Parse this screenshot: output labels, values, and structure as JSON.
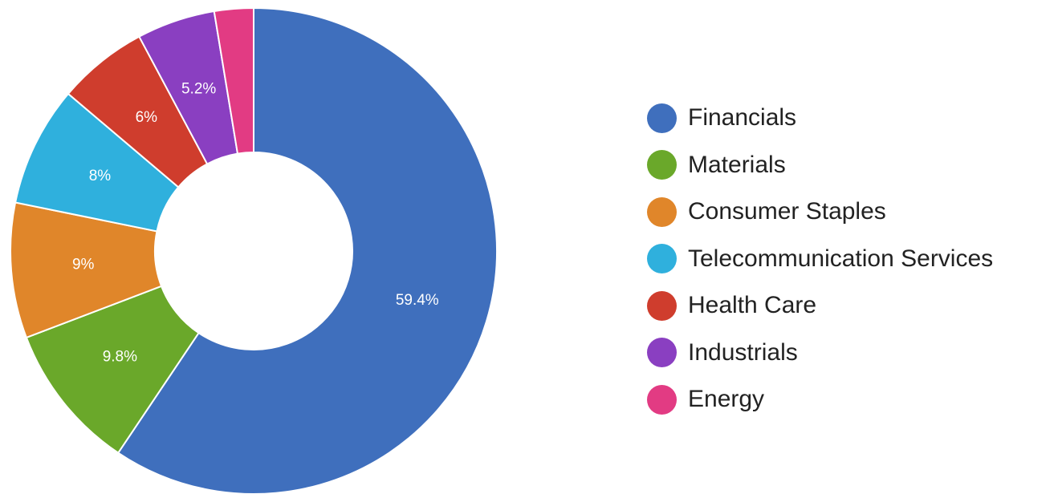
{
  "chart_data": {
    "type": "pie",
    "donut": true,
    "slices": [
      {
        "name": "Financials",
        "value": 59.4,
        "label": "59.4%",
        "color": "#3f6fbd"
      },
      {
        "name": "Materials",
        "value": 9.8,
        "label": "9.8%",
        "color": "#6aa82a"
      },
      {
        "name": "Consumer Staples",
        "value": 9.0,
        "label": "9%",
        "color": "#e0862a"
      },
      {
        "name": "Telecommunication Services",
        "value": 8.0,
        "label": "8%",
        "color": "#2fb0dd"
      },
      {
        "name": "Health Care",
        "value": 6.0,
        "label": "6%",
        "color": "#cf3d2d"
      },
      {
        "name": "Industrials",
        "value": 5.2,
        "label": "5.2%",
        "color": "#8a3fc1"
      },
      {
        "name": "Energy",
        "value": 2.6,
        "label": "",
        "color": "#e23b83"
      }
    ],
    "legend_position": "right",
    "start_angle": "top",
    "direction": "clockwise"
  }
}
